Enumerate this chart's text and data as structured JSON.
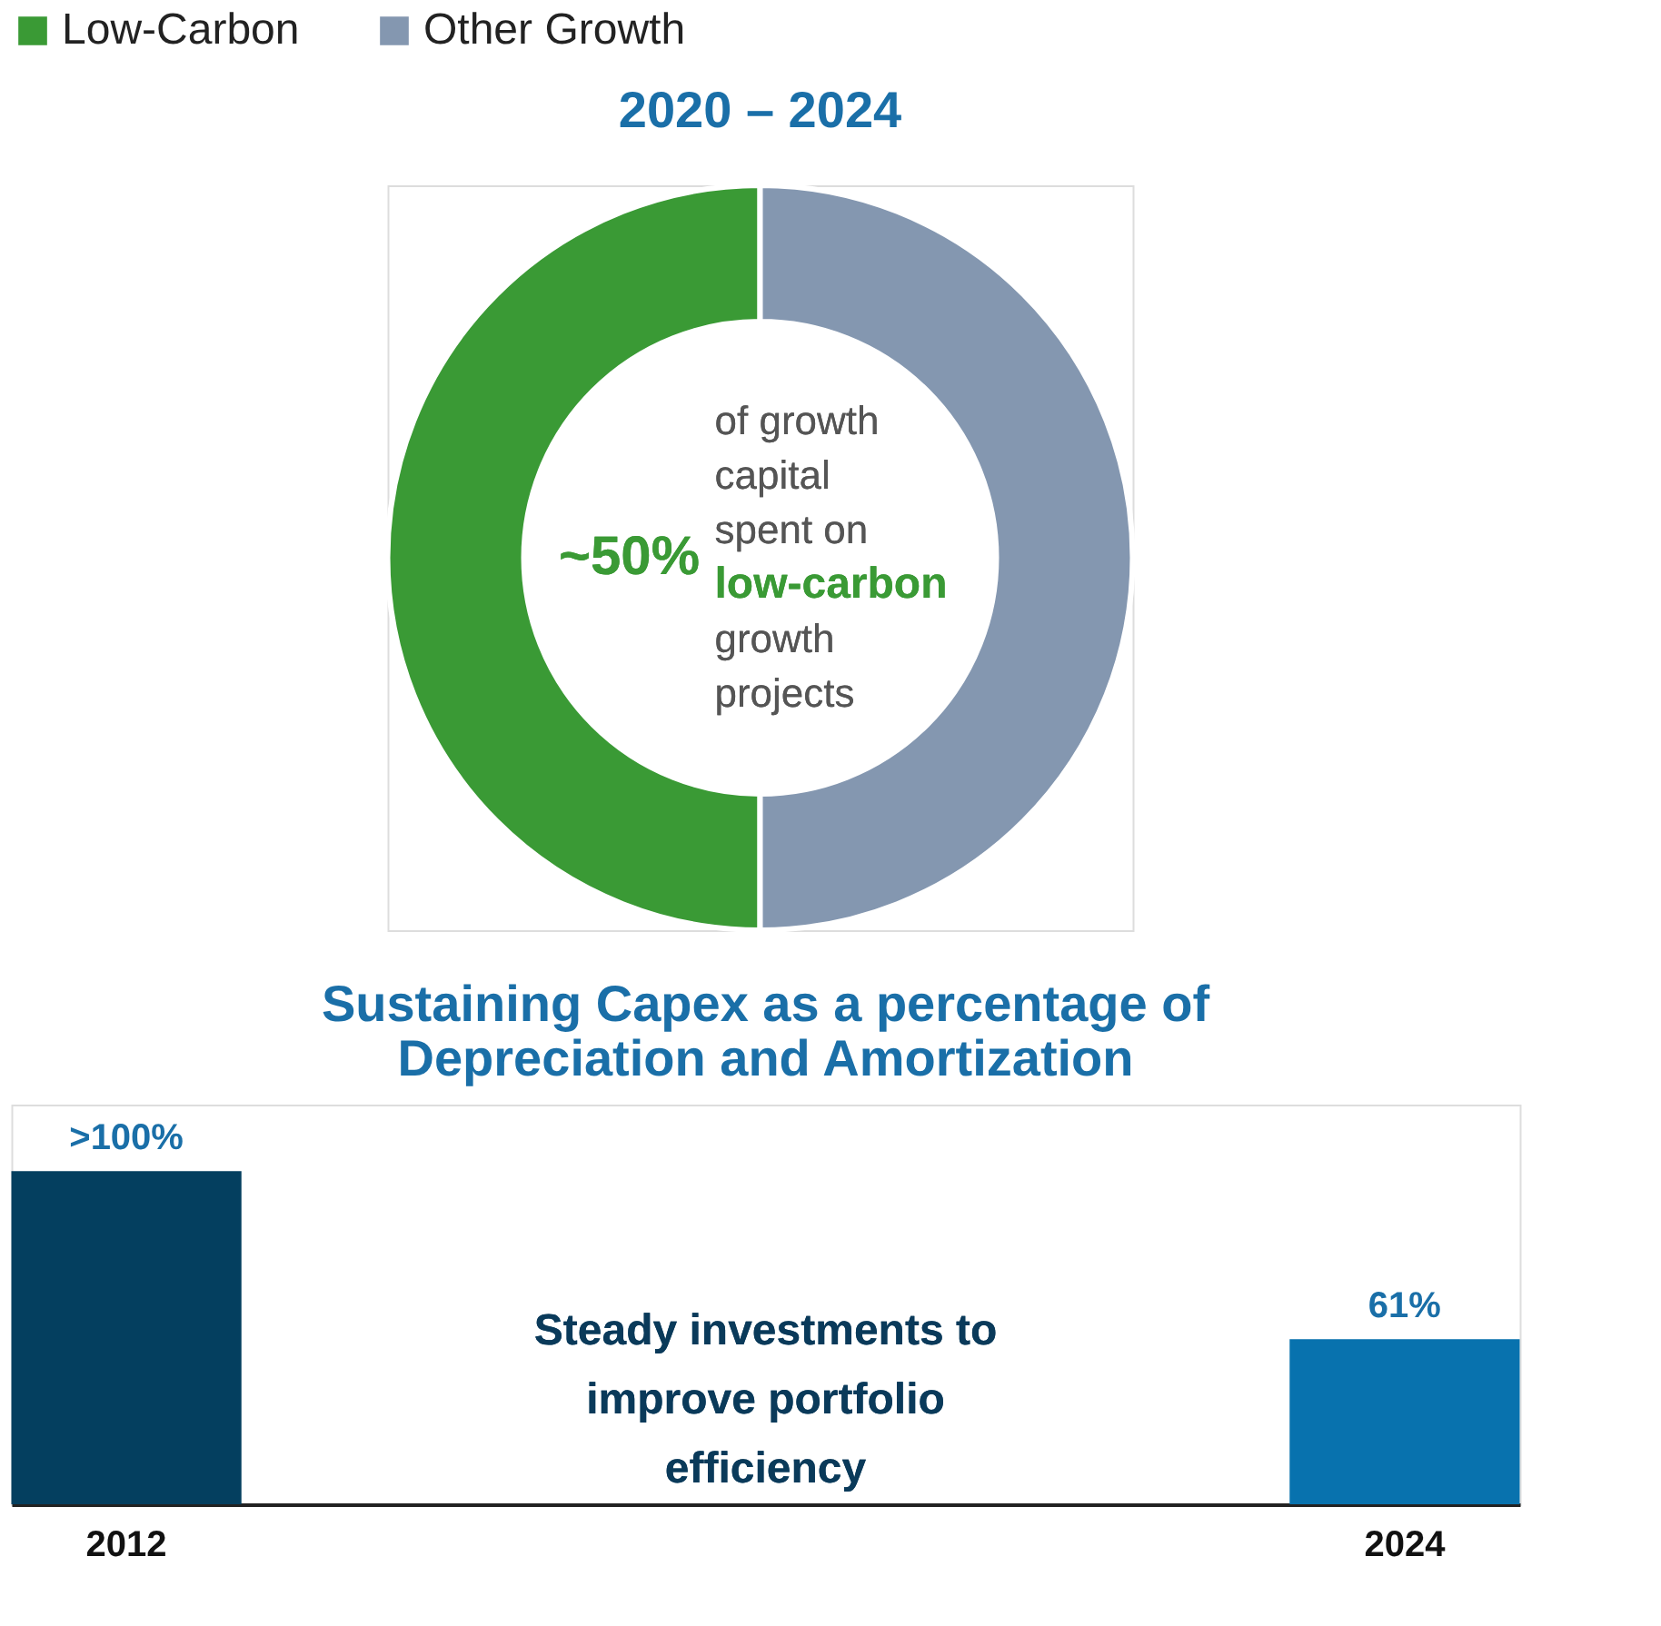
{
  "chart_data": [
    {
      "type": "donut",
      "title": "2020 – 2024",
      "categories": [
        "Low-Carbon",
        "Other Growth"
      ],
      "values": [
        50,
        50
      ],
      "colors": [
        "#3a9a35",
        "#8497b0"
      ],
      "legend": "top",
      "annotations": [
        "~50%",
        "of growth capital spent on",
        "low-carbon",
        "growth projects"
      ]
    },
    {
      "type": "bar",
      "title": "Sustaining Capex as a percentage of Depreciation and Amortization",
      "categories": [
        "2012",
        "2024"
      ],
      "values": [
        123,
        61
      ],
      "colors": [
        "#043f5f",
        "#0872ae"
      ],
      "value_labels": [
        ">100%",
        "61%"
      ],
      "annotations": [
        "Steady investments to improve portfolio efficiency"
      ]
    }
  ]
}
